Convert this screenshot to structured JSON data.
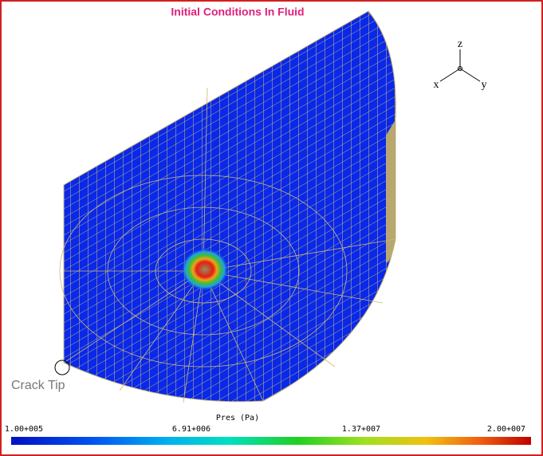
{
  "title": "Initial Conditions In Fluid",
  "triad": {
    "z": "z",
    "x": "x",
    "y": "y"
  },
  "annotation": "Crack Tip",
  "colorbar": {
    "label": "Pres (Pa)",
    "ticks": [
      "1.00+005",
      "6.91+006",
      "1.37+007",
      "2.00+007"
    ]
  }
}
